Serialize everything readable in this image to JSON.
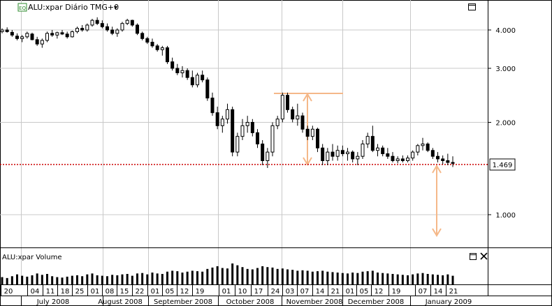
{
  "header": {
    "badge": "EQ",
    "title": "ALU:xpar Diário TMG+0",
    "dropdown_glyph": "▾"
  },
  "price_axis": {
    "ticks": [
      "4.000",
      "3.000",
      "2.000",
      "1.000"
    ],
    "tick_values": [
      4.0,
      3.0,
      2.0,
      1.0
    ],
    "scale": "log",
    "current_label": "1.469",
    "current_value": 1.469
  },
  "volume_panel": {
    "title": "ALU:xpar Volume"
  },
  "date_axis": {
    "days": [
      "20",
      "04",
      "11",
      "18",
      "25",
      "01",
      "08",
      "15",
      "22",
      "01",
      "05",
      "12",
      "19",
      "01",
      "10",
      "17",
      "24",
      "03",
      "07",
      "14",
      "21",
      "01",
      "05",
      "12",
      "19",
      "07",
      "14",
      "21"
    ],
    "months": [
      "July 2008",
      "August 2008",
      "September 2008",
      "October 2008",
      "November 2008",
      "December 2008",
      "January 2009"
    ]
  },
  "colors": {
    "up_candle": "#ffffff",
    "down_candle": "#000000",
    "current_price_line": "#cc0000",
    "annotation": "#f5b889",
    "grid": "#c8c8c8",
    "badge_bg": "#2e8b2e"
  },
  "icons": {
    "maximize": "maximize-icon",
    "close": "close-icon",
    "dropdown": "chevron-down-icon"
  },
  "chart_data": {
    "type": "candlestick",
    "price_scale": "log",
    "ylim": [
      0.75,
      5.2
    ],
    "grid": true,
    "bars": [
      [
        3.95,
        4.05,
        3.9,
        4.0,
        80
      ],
      [
        4.0,
        4.08,
        3.92,
        3.95,
        70
      ],
      [
        3.93,
        4.0,
        3.8,
        3.85,
        90
      ],
      [
        3.82,
        3.9,
        3.7,
        3.75,
        110
      ],
      [
        3.75,
        3.85,
        3.65,
        3.8,
        95
      ],
      [
        3.8,
        3.95,
        3.75,
        3.9,
        85
      ],
      [
        3.88,
        3.92,
        3.7,
        3.72,
        100
      ],
      [
        3.72,
        3.8,
        3.55,
        3.6,
        120
      ],
      [
        3.6,
        3.75,
        3.5,
        3.7,
        105
      ],
      [
        3.7,
        3.95,
        3.65,
        3.9,
        115
      ],
      [
        3.9,
        4.0,
        3.8,
        3.85,
        90
      ],
      [
        3.85,
        3.95,
        3.75,
        3.92,
        80
      ],
      [
        3.92,
        4.0,
        3.85,
        3.88,
        75
      ],
      [
        3.88,
        3.95,
        3.75,
        3.8,
        85
      ],
      [
        3.8,
        3.98,
        3.78,
        3.95,
        95
      ],
      [
        3.95,
        4.1,
        3.9,
        4.05,
        100
      ],
      [
        4.05,
        4.15,
        3.95,
        4.0,
        90
      ],
      [
        4.0,
        4.2,
        3.95,
        4.15,
        110
      ],
      [
        4.15,
        4.35,
        4.1,
        4.3,
        120
      ],
      [
        4.3,
        4.4,
        4.15,
        4.2,
        100
      ],
      [
        4.2,
        4.3,
        4.05,
        4.1,
        95
      ],
      [
        4.1,
        4.2,
        3.95,
        4.0,
        90
      ],
      [
        4.0,
        4.1,
        3.85,
        3.9,
        105
      ],
      [
        3.9,
        4.05,
        3.8,
        4.0,
        100
      ],
      [
        4.0,
        4.25,
        3.95,
        4.2,
        110
      ],
      [
        4.2,
        4.35,
        4.15,
        4.3,
        115
      ],
      [
        4.3,
        4.32,
        4.1,
        4.15,
        95
      ],
      [
        4.15,
        4.2,
        3.85,
        3.9,
        120
      ],
      [
        3.9,
        3.95,
        3.7,
        3.75,
        125
      ],
      [
        3.75,
        3.8,
        3.6,
        3.65,
        110
      ],
      [
        3.65,
        3.75,
        3.5,
        3.55,
        130
      ],
      [
        3.55,
        3.6,
        3.4,
        3.45,
        120
      ],
      [
        3.45,
        3.55,
        3.3,
        3.5,
        115
      ],
      [
        3.5,
        3.55,
        3.1,
        3.15,
        140
      ],
      [
        3.15,
        3.25,
        2.95,
        3.0,
        150
      ],
      [
        3.0,
        3.1,
        2.85,
        2.9,
        145
      ],
      [
        2.9,
        3.05,
        2.8,
        2.95,
        130
      ],
      [
        2.95,
        3.0,
        2.75,
        2.8,
        140
      ],
      [
        2.8,
        2.95,
        2.6,
        2.65,
        150
      ],
      [
        2.65,
        2.9,
        2.6,
        2.85,
        145
      ],
      [
        2.85,
        2.95,
        2.7,
        2.75,
        140
      ],
      [
        2.75,
        2.8,
        2.35,
        2.4,
        170
      ],
      [
        2.4,
        2.5,
        2.1,
        2.15,
        185
      ],
      [
        2.15,
        2.25,
        1.9,
        1.95,
        200
      ],
      [
        1.95,
        2.1,
        1.85,
        2.05,
        180
      ],
      [
        2.05,
        2.3,
        1.98,
        2.2,
        175
      ],
      [
        2.2,
        2.25,
        1.55,
        1.6,
        230
      ],
      [
        1.6,
        1.85,
        1.55,
        1.8,
        210
      ],
      [
        1.8,
        2.05,
        1.75,
        1.95,
        190
      ],
      [
        1.95,
        2.1,
        1.85,
        2.0,
        170
      ],
      [
        2.0,
        2.05,
        1.8,
        1.85,
        165
      ],
      [
        1.85,
        1.9,
        1.65,
        1.7,
        180
      ],
      [
        1.7,
        1.75,
        1.45,
        1.5,
        200
      ],
      [
        1.5,
        1.65,
        1.42,
        1.6,
        190
      ],
      [
        1.6,
        2.0,
        1.55,
        1.95,
        185
      ],
      [
        1.95,
        2.1,
        1.9,
        2.05,
        170
      ],
      [
        2.05,
        2.5,
        2.0,
        2.45,
        175
      ],
      [
        2.45,
        2.5,
        2.15,
        2.2,
        165
      ],
      [
        2.2,
        2.25,
        2.0,
        2.05,
        160
      ],
      [
        2.05,
        2.3,
        1.95,
        2.1,
        150
      ],
      [
        2.1,
        2.15,
        1.85,
        1.9,
        155
      ],
      [
        1.9,
        1.95,
        1.75,
        1.8,
        150
      ],
      [
        1.8,
        1.95,
        1.75,
        1.9,
        140
      ],
      [
        1.9,
        1.92,
        1.6,
        1.65,
        145
      ],
      [
        1.65,
        1.7,
        1.45,
        1.5,
        150
      ],
      [
        1.5,
        1.65,
        1.45,
        1.6,
        140
      ],
      [
        1.6,
        1.7,
        1.5,
        1.55,
        135
      ],
      [
        1.55,
        1.68,
        1.5,
        1.62,
        130
      ],
      [
        1.62,
        1.68,
        1.55,
        1.58,
        125
      ],
      [
        1.58,
        1.65,
        1.5,
        1.6,
        120
      ],
      [
        1.6,
        1.62,
        1.48,
        1.52,
        130
      ],
      [
        1.52,
        1.6,
        1.45,
        1.55,
        125
      ],
      [
        1.55,
        1.75,
        1.52,
        1.7,
        140
      ],
      [
        1.7,
        1.85,
        1.65,
        1.8,
        145
      ],
      [
        1.8,
        1.95,
        1.6,
        1.62,
        150
      ],
      [
        1.62,
        1.7,
        1.55,
        1.65,
        130
      ],
      [
        1.65,
        1.68,
        1.55,
        1.58,
        125
      ],
      [
        1.58,
        1.65,
        1.52,
        1.55,
        120
      ],
      [
        1.55,
        1.6,
        1.48,
        1.5,
        115
      ],
      [
        1.5,
        1.55,
        1.47,
        1.52,
        110
      ],
      [
        1.52,
        1.56,
        1.48,
        1.5,
        105
      ],
      [
        1.5,
        1.56,
        1.48,
        1.53,
        100
      ],
      [
        1.53,
        1.62,
        1.5,
        1.6,
        110
      ],
      [
        1.6,
        1.7,
        1.56,
        1.68,
        120
      ],
      [
        1.68,
        1.78,
        1.62,
        1.7,
        125
      ],
      [
        1.7,
        1.72,
        1.6,
        1.62,
        115
      ],
      [
        1.62,
        1.65,
        1.52,
        1.55,
        110
      ],
      [
        1.55,
        1.6,
        1.48,
        1.52,
        105
      ],
      [
        1.52,
        1.56,
        1.46,
        1.5,
        100
      ],
      [
        1.5,
        1.58,
        1.45,
        1.48,
        110
      ],
      [
        1.48,
        1.55,
        1.43,
        1.47,
        95
      ]
    ]
  }
}
